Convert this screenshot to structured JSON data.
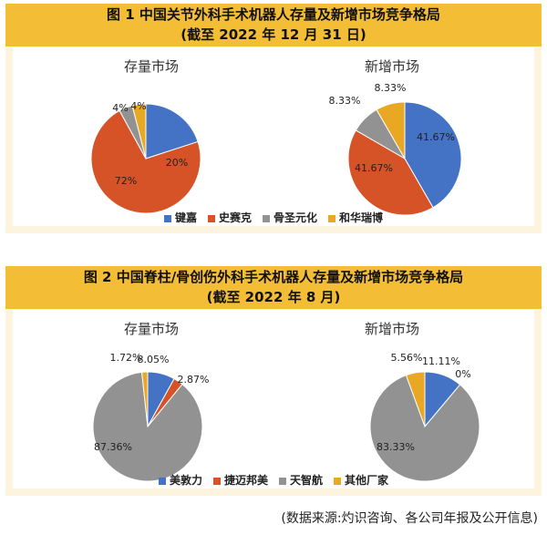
{
  "figure1": {
    "title_line1": "图 1  中国关节外科手术机器人存量及新增市场竞争格局",
    "title_line2": "(截至 2022 年 12 月 31 日)",
    "legend": [
      {
        "name": "键嘉",
        "color": "#4472c4"
      },
      {
        "name": "史赛克",
        "color": "#d65227"
      },
      {
        "name": "骨圣元化",
        "color": "#929292"
      },
      {
        "name": "和华瑞博",
        "color": "#e9a824"
      }
    ]
  },
  "figure2": {
    "title_line1": "图 2  中国脊柱/骨创伤外科手术机器人存量及新增市场竞争格局",
    "title_line2": "(截至 2022 年 8 月)",
    "legend": [
      {
        "name": "美敦力",
        "color": "#4472c4"
      },
      {
        "name": "捷迈邦美",
        "color": "#d65227"
      },
      {
        "name": "天智航",
        "color": "#929292"
      },
      {
        "name": "其他厂家",
        "color": "#e9a824"
      }
    ]
  },
  "chart_data": [
    {
      "type": "pie",
      "title": "存量市场",
      "categories": [
        "键嘉",
        "史赛克",
        "骨圣元化",
        "和华瑞博"
      ],
      "values": [
        20,
        72,
        4,
        4
      ],
      "labels": [
        "20%",
        "72%",
        "4%",
        "4%"
      ]
    },
    {
      "type": "pie",
      "title": "新增市场",
      "categories": [
        "键嘉",
        "史赛克",
        "骨圣元化",
        "和华瑞博"
      ],
      "values": [
        41.67,
        41.67,
        8.33,
        8.33
      ],
      "labels": [
        "41.67%",
        "41.67%",
        "8.33%",
        "8.33%"
      ]
    },
    {
      "type": "pie",
      "title": "存量市场",
      "categories": [
        "美敦力",
        "捷迈邦美",
        "天智航",
        "其他厂家"
      ],
      "values": [
        8.05,
        2.87,
        87.36,
        1.72
      ],
      "labels": [
        "8.05%",
        "2.87%",
        "87.36%",
        "1.72%"
      ]
    },
    {
      "type": "pie",
      "title": "新增市场",
      "categories": [
        "美敦力",
        "捷迈邦美",
        "天智航",
        "其他厂家"
      ],
      "values": [
        11.11,
        0,
        83.33,
        5.56
      ],
      "labels": [
        "11.11%",
        "0%",
        "83.33%",
        "5.56%"
      ]
    }
  ],
  "source": "(数据来源:灼识咨询、各公司年报及公开信息)"
}
